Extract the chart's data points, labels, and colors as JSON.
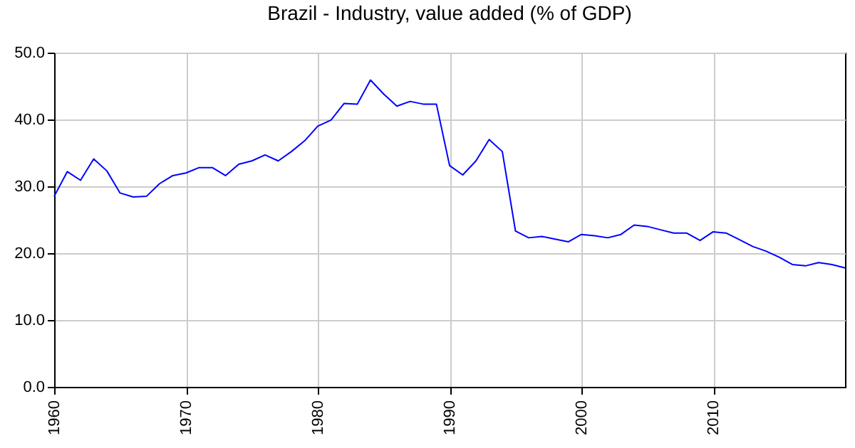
{
  "chart_data": {
    "type": "line",
    "title": "Brazil - Industry, value added (% of GDP)",
    "x": [
      1960,
      1961,
      1962,
      1963,
      1964,
      1965,
      1966,
      1967,
      1968,
      1969,
      1970,
      1971,
      1972,
      1973,
      1974,
      1975,
      1976,
      1977,
      1978,
      1979,
      1980,
      1981,
      1982,
      1983,
      1984,
      1985,
      1986,
      1987,
      1988,
      1989,
      1990,
      1991,
      1992,
      1993,
      1994,
      1995,
      1996,
      1997,
      1998,
      1999,
      2000,
      2001,
      2002,
      2003,
      2004,
      2005,
      2006,
      2007,
      2008,
      2009,
      2010,
      2011,
      2012,
      2013,
      2014,
      2015,
      2016,
      2017,
      2018,
      2019,
      2020
    ],
    "series": [
      {
        "color": "#0000ff",
        "values": [
          28.5,
          32.2,
          30.9,
          34.1,
          32.3,
          29.0,
          28.4,
          28.5,
          30.4,
          31.6,
          32.0,
          32.8,
          32.8,
          31.6,
          33.3,
          33.8,
          34.7,
          33.8,
          35.2,
          36.8,
          39.0,
          39.9,
          42.4,
          42.3,
          45.9,
          43.8,
          42.0,
          42.7,
          42.3,
          42.3,
          33.1,
          31.7,
          33.8,
          37.0,
          35.2,
          23.3,
          22.3,
          22.5,
          22.1,
          21.7,
          22.8,
          22.6,
          22.3,
          22.8,
          24.2,
          24.0,
          23.5,
          23.0,
          23.0,
          21.9,
          23.2,
          23.0,
          22.0,
          21.0,
          20.3,
          19.4,
          18.3,
          18.1,
          18.6,
          18.3,
          17.8
        ]
      }
    ],
    "xlim": [
      1960,
      2020
    ],
    "xticks": [
      1960,
      1970,
      1980,
      1990,
      2000,
      2010
    ],
    "ylim": [
      0,
      50
    ],
    "yticks": [
      {
        "value": 0,
        "label": "0.0"
      },
      {
        "value": 10,
        "label": "10.0"
      },
      {
        "value": 20,
        "label": "20.0"
      },
      {
        "value": 30,
        "label": "30.0"
      },
      {
        "value": 40,
        "label": "40.0"
      },
      {
        "value": 50,
        "label": "50.0"
      }
    ],
    "grid": true,
    "legend": false
  }
}
